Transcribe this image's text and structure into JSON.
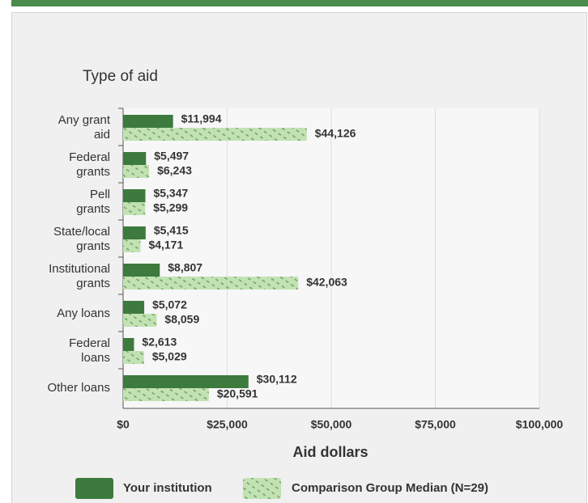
{
  "chart_data": {
    "type": "bar",
    "orientation": "horizontal",
    "title": "Type of aid",
    "categories": [
      [
        "Any grant",
        "aid"
      ],
      [
        "Federal",
        "grants"
      ],
      [
        "Pell",
        "grants"
      ],
      [
        "State/local",
        "grants"
      ],
      [
        "Institutional",
        "grants"
      ],
      [
        "Any loans"
      ],
      [
        "Federal",
        "loans"
      ],
      [
        "Other loans"
      ]
    ],
    "series": [
      {
        "name": "Your institution",
        "color": "#3d7a3d",
        "pattern": false,
        "values": [
          11994,
          5497,
          5347,
          5415,
          8807,
          5072,
          2613,
          30112
        ],
        "value_labels": [
          "$11,994",
          "$5,497",
          "$5,347",
          "$5,415",
          "$8,807",
          "$5,072",
          "$2,613",
          "$30,112"
        ]
      },
      {
        "name": "Comparison Group Median (N=29)",
        "color": "#c3e2b4",
        "pattern": true,
        "values": [
          44126,
          6243,
          5299,
          4171,
          42063,
          8059,
          5029,
          20591
        ],
        "value_labels": [
          "$44,126",
          "$6,243",
          "$5,299",
          "$4,171",
          "$42,063",
          "$8,059",
          "$5,029",
          "$20,591"
        ]
      }
    ],
    "xlabel": "Aid dollars",
    "xlim": [
      0,
      100000
    ],
    "xticks": [
      {
        "value": 0,
        "label": "$0"
      },
      {
        "value": 25000,
        "label": "$25,000"
      },
      {
        "value": 50000,
        "label": "$50,000"
      },
      {
        "value": 75000,
        "label": "$75,000"
      },
      {
        "value": 100000,
        "label": "$100,000"
      }
    ],
    "grid": true,
    "legend": "bottom"
  }
}
